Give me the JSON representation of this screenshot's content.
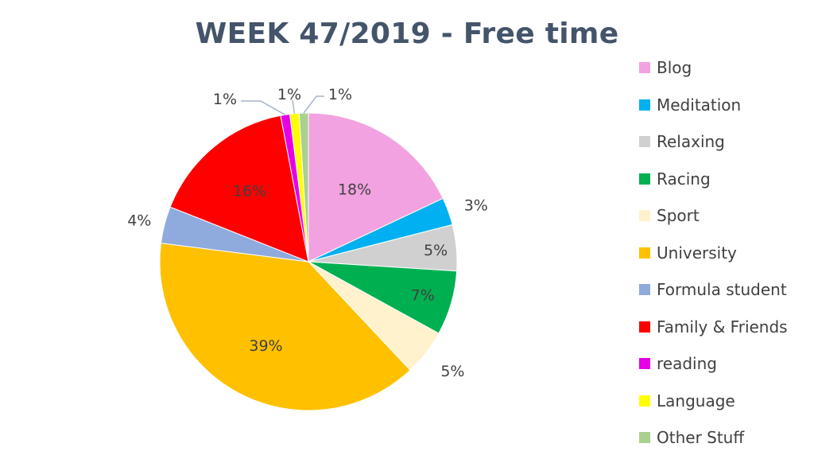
{
  "chart_data": {
    "type": "pie",
    "title": "WEEK 47/2019 - Free time",
    "categories": [
      "Blog",
      "Meditation",
      "Relaxing",
      "Racing",
      "Sport",
      "University",
      "Formula student",
      "Family & Friends",
      "reading",
      "Language",
      "Other Stuff"
    ],
    "values": [
      18,
      3,
      5,
      7,
      5,
      39,
      4,
      16,
      1,
      1,
      1
    ],
    "data_labels": [
      "18%",
      "3%",
      "5%",
      "7%",
      "5%",
      "39%",
      "4%",
      "16%",
      "1%",
      "1%",
      "1%"
    ],
    "colors": [
      "#F2A2E0",
      "#00B0F0",
      "#D0D0D0",
      "#00B050",
      "#FFF2CC",
      "#FFC000",
      "#8FAADC",
      "#FF0000",
      "#E600E6",
      "#FFFF00",
      "#A9D18E"
    ],
    "legend_position": "right",
    "start_angle": "12 o'clock",
    "direction": "clockwise"
  }
}
